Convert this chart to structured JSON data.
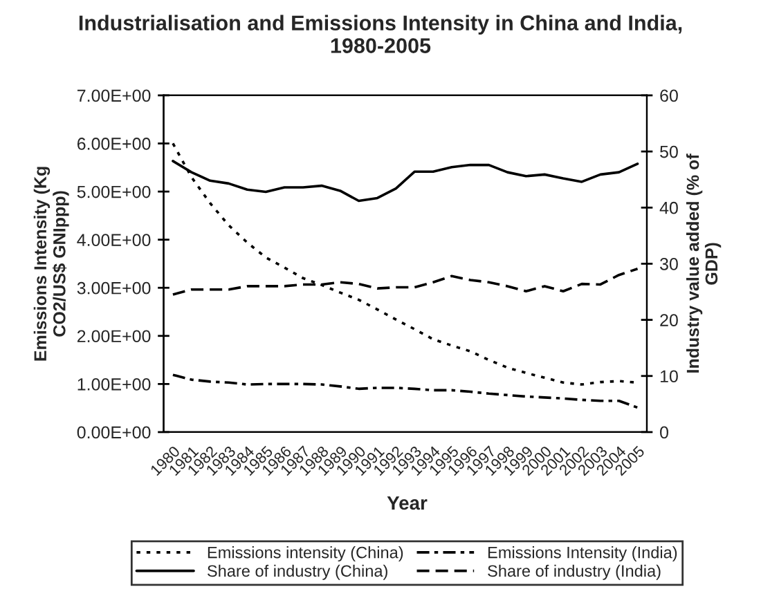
{
  "chart_data": {
    "type": "line",
    "title": "Industrialisation and Emissions Intensity in China and India,\n1980-2005",
    "xlabel": "Year",
    "ylabel": "Emissions Intensity (Kg\nCO2/US$ GNIppp)",
    "y2label": "Industry value added (% of\nGDP)",
    "categories": [
      "1980",
      "1981",
      "1982",
      "1983",
      "1984",
      "1985",
      "1986",
      "1987",
      "1988",
      "1989",
      "1990",
      "1991",
      "1992",
      "1993",
      "1994",
      "1995",
      "1996",
      "1997",
      "1998",
      "1999",
      "2000",
      "2001",
      "2002",
      "2003",
      "2004",
      "2005"
    ],
    "series": [
      {
        "name": "Emissions intensity (China)",
        "color": "#000000",
        "line_style": "dotted",
        "values": [
          6.0,
          5.3,
          4.76,
          4.3,
          3.94,
          3.63,
          3.42,
          3.2,
          3.06,
          2.9,
          2.75,
          2.55,
          2.34,
          2.14,
          1.93,
          1.8,
          1.68,
          1.5,
          1.34,
          1.23,
          1.13,
          1.03,
          0.99,
          1.04,
          1.06,
          1.03
        ]
      },
      {
        "name": "Emissions Intensity (India)",
        "color": "#000000",
        "line_style": "dashdot",
        "values": [
          1.19,
          1.09,
          1.05,
          1.03,
          0.99,
          1.0,
          1.0,
          1.0,
          0.99,
          0.95,
          0.9,
          0.92,
          0.92,
          0.9,
          0.87,
          0.87,
          0.84,
          0.8,
          0.77,
          0.74,
          0.72,
          0.7,
          0.67,
          0.65,
          0.65,
          0.51
        ]
      },
      {
        "name": "Share of industry (China)",
        "color": "#000000",
        "line_style": "solid",
        "axis": "y2",
        "values": [
          48.3,
          46.3,
          44.8,
          44.3,
          43.2,
          42.8,
          43.6,
          43.6,
          43.9,
          43.0,
          41.2,
          41.7,
          43.4,
          46.4,
          46.4,
          47.2,
          47.6,
          47.6,
          46.3,
          45.6,
          45.9,
          45.2,
          44.6,
          45.9,
          46.3,
          47.8
        ]
      },
      {
        "name": "Share of industry (India)",
        "color": "#000000",
        "line_style": "dashed",
        "axis": "y2",
        "values": [
          24.5,
          25.4,
          25.4,
          25.4,
          26.0,
          26.0,
          26.0,
          26.3,
          26.3,
          26.7,
          26.4,
          25.6,
          25.8,
          25.8,
          26.7,
          27.8,
          27.1,
          26.7,
          26.0,
          25.1,
          26.0,
          25.1,
          26.4,
          26.3,
          28.0,
          29.1
        ]
      }
    ],
    "ylim": [
      0,
      7
    ],
    "yticks": [
      {
        "value": 0,
        "label": "0.00E+00"
      },
      {
        "value": 1,
        "label": "1.00E+00"
      },
      {
        "value": 2,
        "label": "2.00E+00"
      },
      {
        "value": 3,
        "label": "3.00E+00"
      },
      {
        "value": 4,
        "label": "4.00E+00"
      },
      {
        "value": 5,
        "label": "5.00E+00"
      },
      {
        "value": 6,
        "label": "6.00E+00"
      },
      {
        "value": 7,
        "label": "7.00E+00"
      }
    ],
    "y2lim": [
      0,
      60
    ],
    "y2ticks": [
      0,
      10,
      20,
      30,
      40,
      50,
      60
    ],
    "grid": false,
    "legend": "bottom",
    "marker": "none"
  }
}
